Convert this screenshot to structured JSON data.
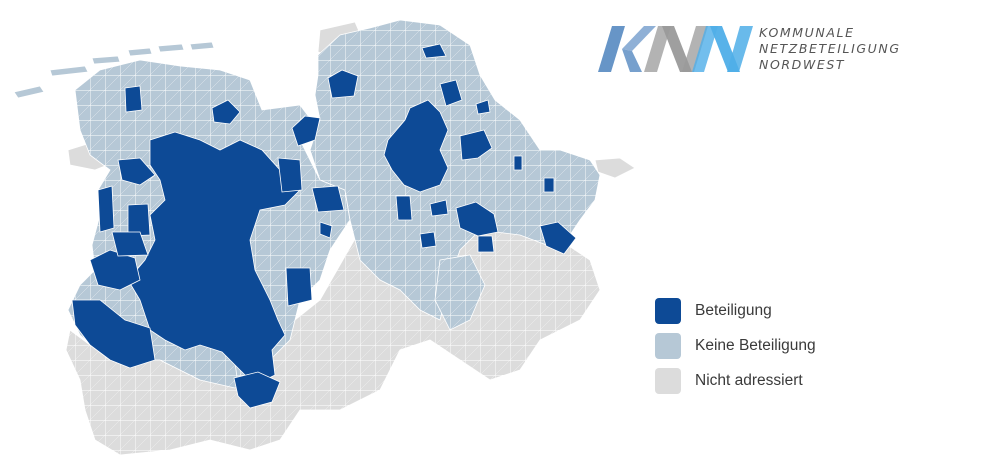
{
  "colors": {
    "beteiligung": "#0d4a96",
    "keine_beteiligung": "#b6c8d6",
    "nicht_adressiert": "#dcdcdc",
    "border": "#ffffff"
  },
  "logo": {
    "text_lines": [
      "KOMMUNALE",
      "NETZBETEILIGUNG",
      "NORDWEST"
    ],
    "mark_letters": "KNN",
    "mark_colors": [
      "#5f8fc4",
      "#9a9a9a",
      "#4faee8"
    ]
  },
  "legend": {
    "items": [
      {
        "label": "Beteiligung",
        "color": "#0d4a96"
      },
      {
        "label": "Keine Beteiligung",
        "color": "#b6c8d6"
      },
      {
        "label": "Nicht adressiert",
        "color": "#dcdcdc"
      }
    ]
  }
}
